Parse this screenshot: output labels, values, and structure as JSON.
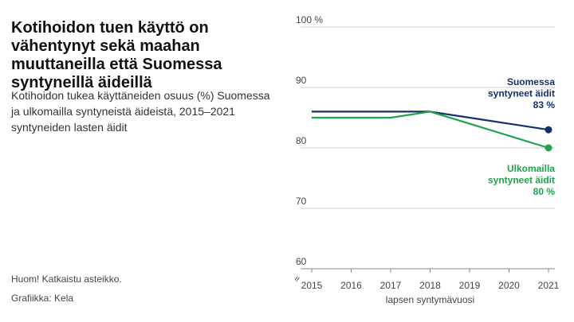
{
  "title": "Kotihoidon tuen käyttö on vähentynyt sekä maahan muuttaneilla että Suomessa syntyneillä äideillä",
  "subtitle": "Kotihoidon tukea käyttäneiden osuus (%) Suomessa ja ulkomailla syntyneistä äideistä, 2015–2021 syntyneiden lasten äidit",
  "note": "Huom! Katkaistu asteikko.",
  "source": "Grafiikka: Kela",
  "colors": {
    "finland": "#14306b",
    "abroad": "#1fa34a",
    "grid": "#cfcfcf",
    "axis": "#888888"
  },
  "chart_data": {
    "type": "line",
    "x": [
      2015,
      2016,
      2017,
      2018,
      2019,
      2020,
      2021
    ],
    "xlabel": "lapsen syntymävuosi",
    "ylabel": "",
    "ylim": [
      60,
      100
    ],
    "yticks": [
      60,
      70,
      80,
      90,
      100
    ],
    "ytick_labels": [
      "60",
      "70",
      "80",
      "90",
      "100 %"
    ],
    "axis_break": "≈",
    "grid": true,
    "series": [
      {
        "key": "finland",
        "name": "Suomessa syntyneet äidit",
        "label_lines": [
          "Suomessa",
          "syntyneet äidit"
        ],
        "end_label": "83 %",
        "values": [
          86,
          86,
          86,
          86,
          85,
          84,
          83
        ]
      },
      {
        "key": "abroad",
        "name": "Ulkomailla syntyneet äidit",
        "label_lines": [
          "Ulkomailla",
          "syntyneet äidit"
        ],
        "end_label": "80 %",
        "values": [
          85,
          85,
          85,
          86,
          84,
          82,
          80
        ]
      }
    ]
  }
}
